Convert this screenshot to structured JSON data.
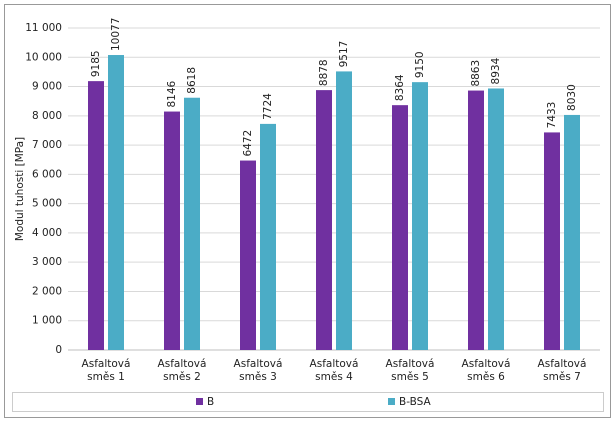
{
  "chart_data": {
    "type": "bar",
    "y_label": "Modul tuhosti [MPa]",
    "categories": [
      "Asfaltová směs 1",
      "Asfaltová směs 2",
      "Asfaltová směs 3",
      "Asfaltová směs 4",
      "Asfaltová směs 5",
      "Asfaltová směs 6",
      "Asfaltová směs 7"
    ],
    "series": [
      {
        "name": "B",
        "color": "#7030a0",
        "values": [
          9185,
          8146,
          6472,
          8878,
          8364,
          8863,
          7433
        ]
      },
      {
        "name": "B-BSA",
        "color": "#4bacc6",
        "values": [
          10077,
          8618,
          7724,
          9517,
          9150,
          8934,
          8030
        ]
      }
    ],
    "ylim": [
      0,
      11000
    ],
    "yticks": [
      0,
      {
        "value": 1000,
        "label": "1 000"
      },
      {
        "value": 2000,
        "label": "2 000"
      },
      {
        "value": 3000,
        "label": "3 000"
      },
      {
        "value": 4000,
        "label": "4 000"
      },
      {
        "value": 5000,
        "label": "5 000"
      },
      {
        "value": 6000,
        "label": "6 000"
      },
      {
        "value": 7000,
        "label": "7 000"
      },
      {
        "value": 8000,
        "label": "8 000"
      },
      {
        "value": 9000,
        "label": "9 000"
      },
      {
        "value": 10000,
        "label": "10 000"
      },
      {
        "value": 11000,
        "label": "11 000"
      }
    ],
    "grid": true,
    "legend": "bottom"
  }
}
